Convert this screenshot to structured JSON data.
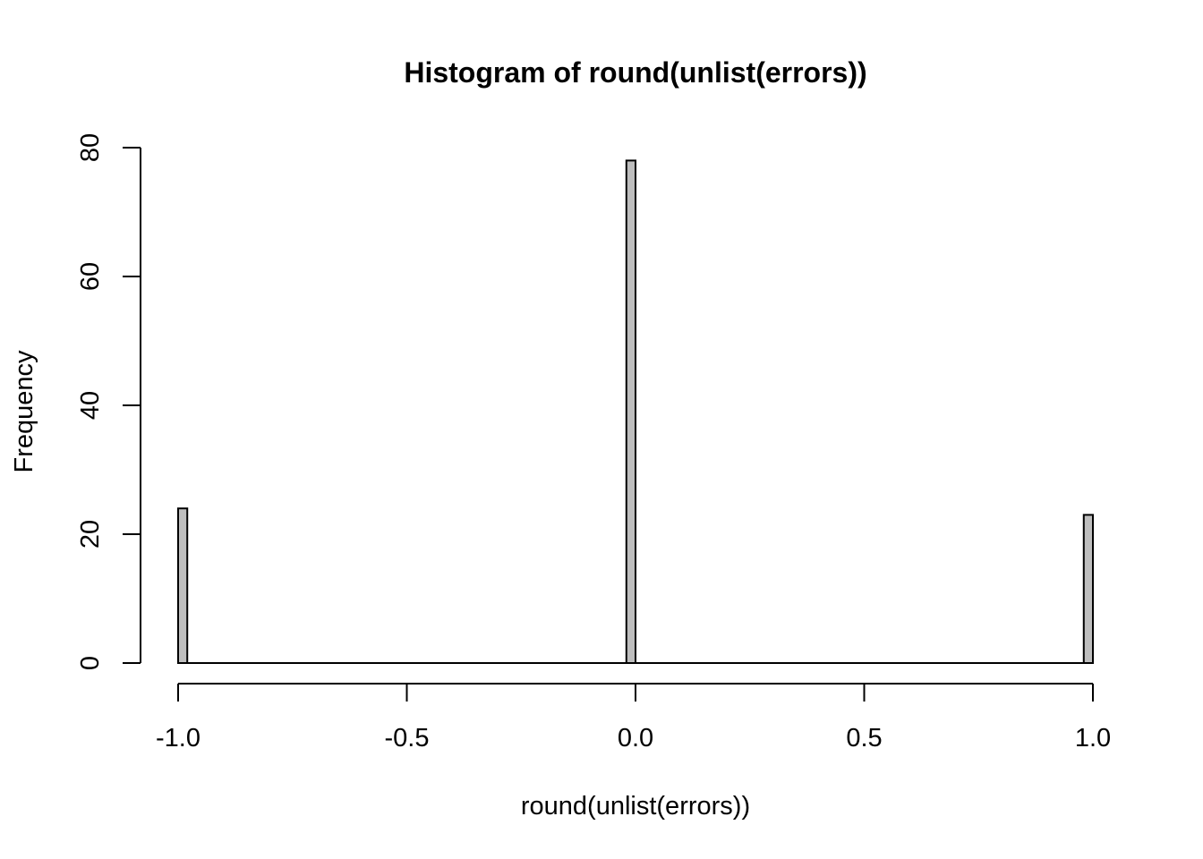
{
  "chart_data": {
    "type": "bar",
    "title": "Histogram of round(unlist(errors))",
    "xlabel": "round(unlist(errors))",
    "ylabel": "Frequency",
    "xlim": [
      -1.0,
      1.0
    ],
    "ylim": [
      0,
      80
    ],
    "x_ticks": [
      "-1.0",
      "-0.5",
      "0.0",
      "0.5",
      "1.0"
    ],
    "y_ticks": [
      "0",
      "20",
      "40",
      "60",
      "80"
    ],
    "bin_width": 0.02,
    "bins": [
      {
        "start": -1.0,
        "end": -0.98,
        "value": 24
      },
      {
        "start": -0.02,
        "end": 0.0,
        "value": 78
      },
      {
        "start": 0.98,
        "end": 1.0,
        "value": 23
      }
    ],
    "bar_color": "#bebebe",
    "grid": false,
    "legend": "none"
  }
}
